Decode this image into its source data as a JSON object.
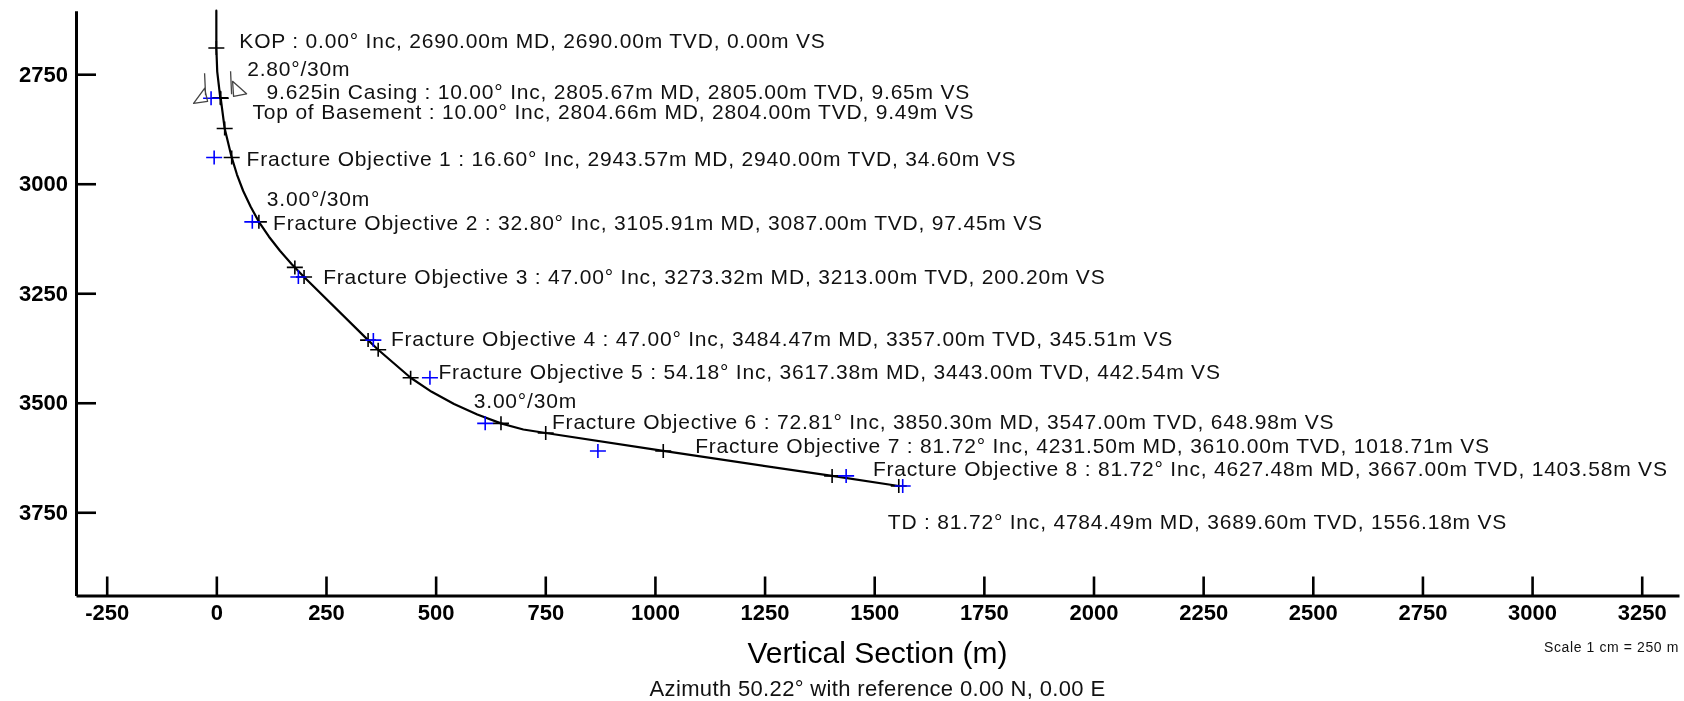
{
  "chart_data": {
    "type": "line",
    "xlabel": "Vertical Section (m)",
    "xlim": [
      -320,
      3335
    ],
    "xticks": [
      -250,
      0,
      250,
      500,
      750,
      1000,
      1250,
      1500,
      1750,
      2000,
      2250,
      2500,
      2750,
      3000,
      3250
    ],
    "ylim": [
      3940,
      2605
    ],
    "yticks": [
      2750,
      3000,
      3250,
      3500,
      3750
    ],
    "series": [
      {
        "color": "#000000",
        "marker": "none",
        "x": [
          0,
          0,
          1,
          2,
          5,
          9,
          10,
          19,
          35,
          47,
          61,
          78,
          97,
          120,
          145,
          172,
          200,
          346,
          369,
          443,
          491,
          542,
          595,
          649,
          700,
          751,
          1019,
          1404,
          1556
        ],
        "values": [
          2605,
          2690,
          2717,
          2744,
          2770,
          2804,
          2805,
          2874,
          2940,
          2979,
          3016,
          3052,
          3087,
          3121,
          3153,
          3184,
          3213,
          3357,
          3379,
          3443,
          3475,
          3503,
          3527,
          3547,
          3561,
          3569,
          3610,
          3667,
          3690
        ]
      },
      {
        "type": "scatter",
        "color": "#000000",
        "marker": "cross",
        "x": [
          0,
          9,
          10,
          19,
          35,
          97,
          179,
          200,
          346,
          369,
          443,
          649,
          751,
          1019,
          1404,
          1556
        ],
        "values": [
          2690,
          2804,
          2805,
          2874,
          2940,
          3087,
          3191,
          3213,
          3357,
          3379,
          3443,
          3547,
          3569,
          3610,
          3667,
          3690
        ]
      },
      {
        "type": "scatter",
        "color": "#0000ff",
        "marker": "cross",
        "x": [
          -12,
          -5,
          82,
          187,
          358,
          487,
          613,
          870,
          1436,
          1565
        ],
        "values": [
          2805,
          2940,
          3087,
          3213,
          3357,
          3443,
          3547,
          3610,
          3667,
          3690
        ]
      }
    ],
    "annotations": [
      {
        "text": "KOP : 0.00° Inc, 2690.00m MD, 2690.00m TVD, 0.00m VS",
        "x": 0,
        "y": 2690
      },
      {
        "text": "2.80°/30m",
        "x": 2,
        "y": 2745
      },
      {
        "text": "9.625in Casing : 10.00° Inc, 2805.67m MD, 2805.00m TVD, 9.65m VS",
        "x": 9.65,
        "y": 2805
      },
      {
        "text": "Top of Basement : 10.00° Inc, 2804.66m MD, 2804.00m TVD, 9.49m VS",
        "x": 9.49,
        "y": 2804
      },
      {
        "text": "Fracture Objective 1 : 16.60° Inc, 2943.57m MD, 2940.00m TVD, 34.60m VS",
        "x": 34.6,
        "y": 2940
      },
      {
        "text": "3.00°/30m",
        "x": 65,
        "y": 3033
      },
      {
        "text": "Fracture Objective 2 : 32.80° Inc, 3105.91m MD, 3087.00m TVD, 97.45m VS",
        "x": 97.45,
        "y": 3087
      },
      {
        "text": "Fracture Objective 3 : 47.00° Inc, 3273.32m MD, 3213.00m TVD, 200.20m VS",
        "x": 200.2,
        "y": 3213
      },
      {
        "text": "Fracture Objective 4 : 47.00° Inc, 3484.47m MD, 3357.00m TVD, 345.51m VS",
        "x": 345.51,
        "y": 3357
      },
      {
        "text": "Fracture Objective 5 : 54.18° Inc, 3617.38m MD, 3443.00m TVD, 442.54m VS",
        "x": 442.54,
        "y": 3443
      },
      {
        "text": "3.00°/30m",
        "x": 530,
        "y": 3495
      },
      {
        "text": "Fracture Objective 6 : 72.81° Inc, 3850.30m MD, 3547.00m TVD, 648.98m VS",
        "x": 648.98,
        "y": 3547
      },
      {
        "text": "Fracture Objective 7 : 81.72° Inc, 4231.50m MD, 3610.00m TVD, 1018.71m VS",
        "x": 1018.71,
        "y": 3610
      },
      {
        "text": "Fracture Objective 8 : 81.72° Inc, 4627.48m MD, 3667.00m TVD, 1403.58m VS",
        "x": 1403.58,
        "y": 3667
      },
      {
        "text": "TD : 81.72° Inc, 4784.49m MD, 3689.60m TVD, 1556.18m VS",
        "x": 1556.18,
        "y": 3689.6
      },
      "Azimuth 50.22° with reference 0.00 N, 0.00 E",
      "Scale 1 cm = 250 m"
    ]
  }
}
